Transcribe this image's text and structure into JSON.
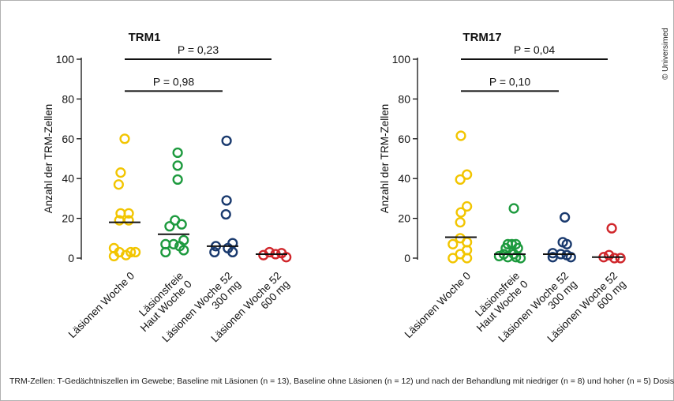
{
  "chart_data": [
    {
      "type": "scatter",
      "title": "TRM1",
      "ylabel": "Anzahl der TRM-Zellen",
      "ylim": [
        0,
        100
      ],
      "yticks": [
        0,
        20,
        40,
        60,
        80,
        100
      ],
      "categories": [
        "Läsionen Woche 0",
        "Läsionsfreie Haut Woche 0",
        "Läsionen Woche 52 300 mg",
        "Läsionen Woche 52 600 mg"
      ],
      "category_lines": [
        [
          "Läsionen Woche 0"
        ],
        [
          "Läsionsfreie",
          "Haut Woche 0"
        ],
        [
          "Läsionen Woche 52",
          "300 mg"
        ],
        [
          "Läsionen Woche 52",
          "600 mg"
        ]
      ],
      "series": [
        {
          "category": "Läsionen Woche 0",
          "color": "#f2c500",
          "median": 18,
          "points": [
            {
              "o": 0,
              "y": 60
            },
            {
              "o": -0.3,
              "y": 43
            },
            {
              "o": -0.45,
              "y": 37
            },
            {
              "o": -0.3,
              "y": 22.5
            },
            {
              "o": 0.3,
              "y": 22.5
            },
            {
              "o": -0.4,
              "y": 19
            },
            {
              "o": 0.3,
              "y": 19
            },
            {
              "o": -0.8,
              "y": 5
            },
            {
              "o": -0.4,
              "y": 3
            },
            {
              "o": 0.45,
              "y": 3
            },
            {
              "o": -0.8,
              "y": 1
            },
            {
              "o": 0.1,
              "y": 1.5
            },
            {
              "o": 0.8,
              "y": 3
            }
          ]
        },
        {
          "category": "Läsionsfreie Haut Woche 0",
          "color": "#1d9a3e",
          "median": 12,
          "points": [
            {
              "o": 0.3,
              "y": 53
            },
            {
              "o": 0.3,
              "y": 46.5
            },
            {
              "o": 0.3,
              "y": 39.5
            },
            {
              "o": 0.1,
              "y": 19
            },
            {
              "o": 0.6,
              "y": 17
            },
            {
              "o": -0.3,
              "y": 16
            },
            {
              "o": 0.75,
              "y": 9
            },
            {
              "o": -0.6,
              "y": 7
            },
            {
              "o": 0.0,
              "y": 7
            },
            {
              "o": 0.45,
              "y": 6
            },
            {
              "o": -0.6,
              "y": 3
            },
            {
              "o": 0.75,
              "y": 4
            }
          ]
        },
        {
          "category": "Läsionen Woche 52 300 mg",
          "color": "#1a3a6e",
          "median": 6,
          "points": [
            {
              "o": 0.3,
              "y": 59
            },
            {
              "o": 0.3,
              "y": 29
            },
            {
              "o": 0.25,
              "y": 22
            },
            {
              "o": -0.5,
              "y": 6
            },
            {
              "o": 0.75,
              "y": 7.5
            },
            {
              "o": 0.4,
              "y": 5
            },
            {
              "o": -0.6,
              "y": 3
            },
            {
              "o": 0.75,
              "y": 3
            }
          ]
        },
        {
          "category": "Läsionen Woche 52 600 mg",
          "color": "#d0262b",
          "median": 2,
          "points": [
            {
              "o": -0.6,
              "y": 1.5
            },
            {
              "o": -0.15,
              "y": 3
            },
            {
              "o": 0.3,
              "y": 2
            },
            {
              "o": 0.75,
              "y": 2.5
            },
            {
              "o": 1.1,
              "y": 0.5
            }
          ]
        }
      ],
      "significance": [
        {
          "label": "P = 0,98",
          "from": 0,
          "to": 2,
          "y": 84
        },
        {
          "label": "P = 0,23",
          "from": 0,
          "to": 3,
          "y": 100
        }
      ]
    },
    {
      "type": "scatter",
      "title": "TRM17",
      "ylabel": "Anzahl der TRM-Zellen",
      "ylim": [
        0,
        100
      ],
      "yticks": [
        0,
        20,
        40,
        60,
        80,
        100
      ],
      "categories": [
        "Läsionen Woche 0",
        "Läsionsfreie Haut Woche 0",
        "Läsionen Woche 52 300 mg",
        "Läsionen Woche 52 600 mg"
      ],
      "category_lines": [
        [
          "Läsionen Woche 0"
        ],
        [
          "Läsionsfreie",
          "Haut Woche 0"
        ],
        [
          "Läsionen Woche 52",
          "300 mg"
        ],
        [
          "Läsionen Woche 52",
          "600 mg"
        ]
      ],
      "series": [
        {
          "category": "Läsionen Woche 0",
          "color": "#f2c500",
          "median": 10.5,
          "points": [
            {
              "o": 0,
              "y": 61.5
            },
            {
              "o": 0.45,
              "y": 42
            },
            {
              "o": -0.05,
              "y": 39.5
            },
            {
              "o": 0.45,
              "y": 26
            },
            {
              "o": 0.0,
              "y": 23
            },
            {
              "o": -0.05,
              "y": 18
            },
            {
              "o": -0.05,
              "y": 10
            },
            {
              "o": -0.6,
              "y": 7
            },
            {
              "o": 0.45,
              "y": 8
            },
            {
              "o": 0.45,
              "y": 4
            },
            {
              "o": -0.05,
              "y": 2
            },
            {
              "o": -0.6,
              "y": 0
            },
            {
              "o": 0.45,
              "y": 0
            }
          ]
        },
        {
          "category": "Läsionsfreie Haut Woche 0",
          "color": "#1d9a3e",
          "median": 2,
          "points": [
            {
              "o": 0.3,
              "y": 25
            },
            {
              "o": -0.15,
              "y": 7
            },
            {
              "o": 0.15,
              "y": 7
            },
            {
              "o": 0.45,
              "y": 7
            },
            {
              "o": -0.3,
              "y": 5
            },
            {
              "o": 0.6,
              "y": 5
            },
            {
              "o": -0.45,
              "y": 2
            },
            {
              "o": 0.3,
              "y": 2
            },
            {
              "o": -0.8,
              "y": 1
            },
            {
              "o": -0.15,
              "y": 0.5
            },
            {
              "o": 0.45,
              "y": 0.5
            },
            {
              "o": 0.8,
              "y": 0
            }
          ]
        },
        {
          "category": "Läsionen Woche 52 300 mg",
          "color": "#1a3a6e",
          "median": 2,
          "points": [
            {
              "o": 0.45,
              "y": 20.5
            },
            {
              "o": 0.3,
              "y": 8
            },
            {
              "o": 0.6,
              "y": 7
            },
            {
              "o": -0.45,
              "y": 2.5
            },
            {
              "o": 0.15,
              "y": 2
            },
            {
              "o": 0.6,
              "y": 1.5
            },
            {
              "o": -0.45,
              "y": 0.5
            },
            {
              "o": 0.9,
              "y": 0.5
            }
          ]
        },
        {
          "category": "Läsionen Woche 52 600 mg",
          "color": "#d0262b",
          "median": 0.5,
          "points": [
            {
              "o": 0.3,
              "y": 15
            },
            {
              "o": -0.3,
              "y": 0.5
            },
            {
              "o": 0.1,
              "y": 1.5
            },
            {
              "o": 0.5,
              "y": 0
            },
            {
              "o": 0.95,
              "y": 0
            }
          ]
        }
      ],
      "significance": [
        {
          "label": "P = 0,10",
          "from": 0,
          "to": 2,
          "y": 84
        },
        {
          "label": "P = 0,04",
          "from": 0,
          "to": 3,
          "y": 100
        }
      ]
    }
  ],
  "footnote": "TRM-Zellen: T-Gedächtniszellen im Gewebe; Baseline mit Läsionen (n = 13), Baseline ohne Läsionen (n = 12) und nach der Behandlung mit niedriger (n = 8) und hoher (n = 5) Dosis",
  "credit": "© Universimed"
}
